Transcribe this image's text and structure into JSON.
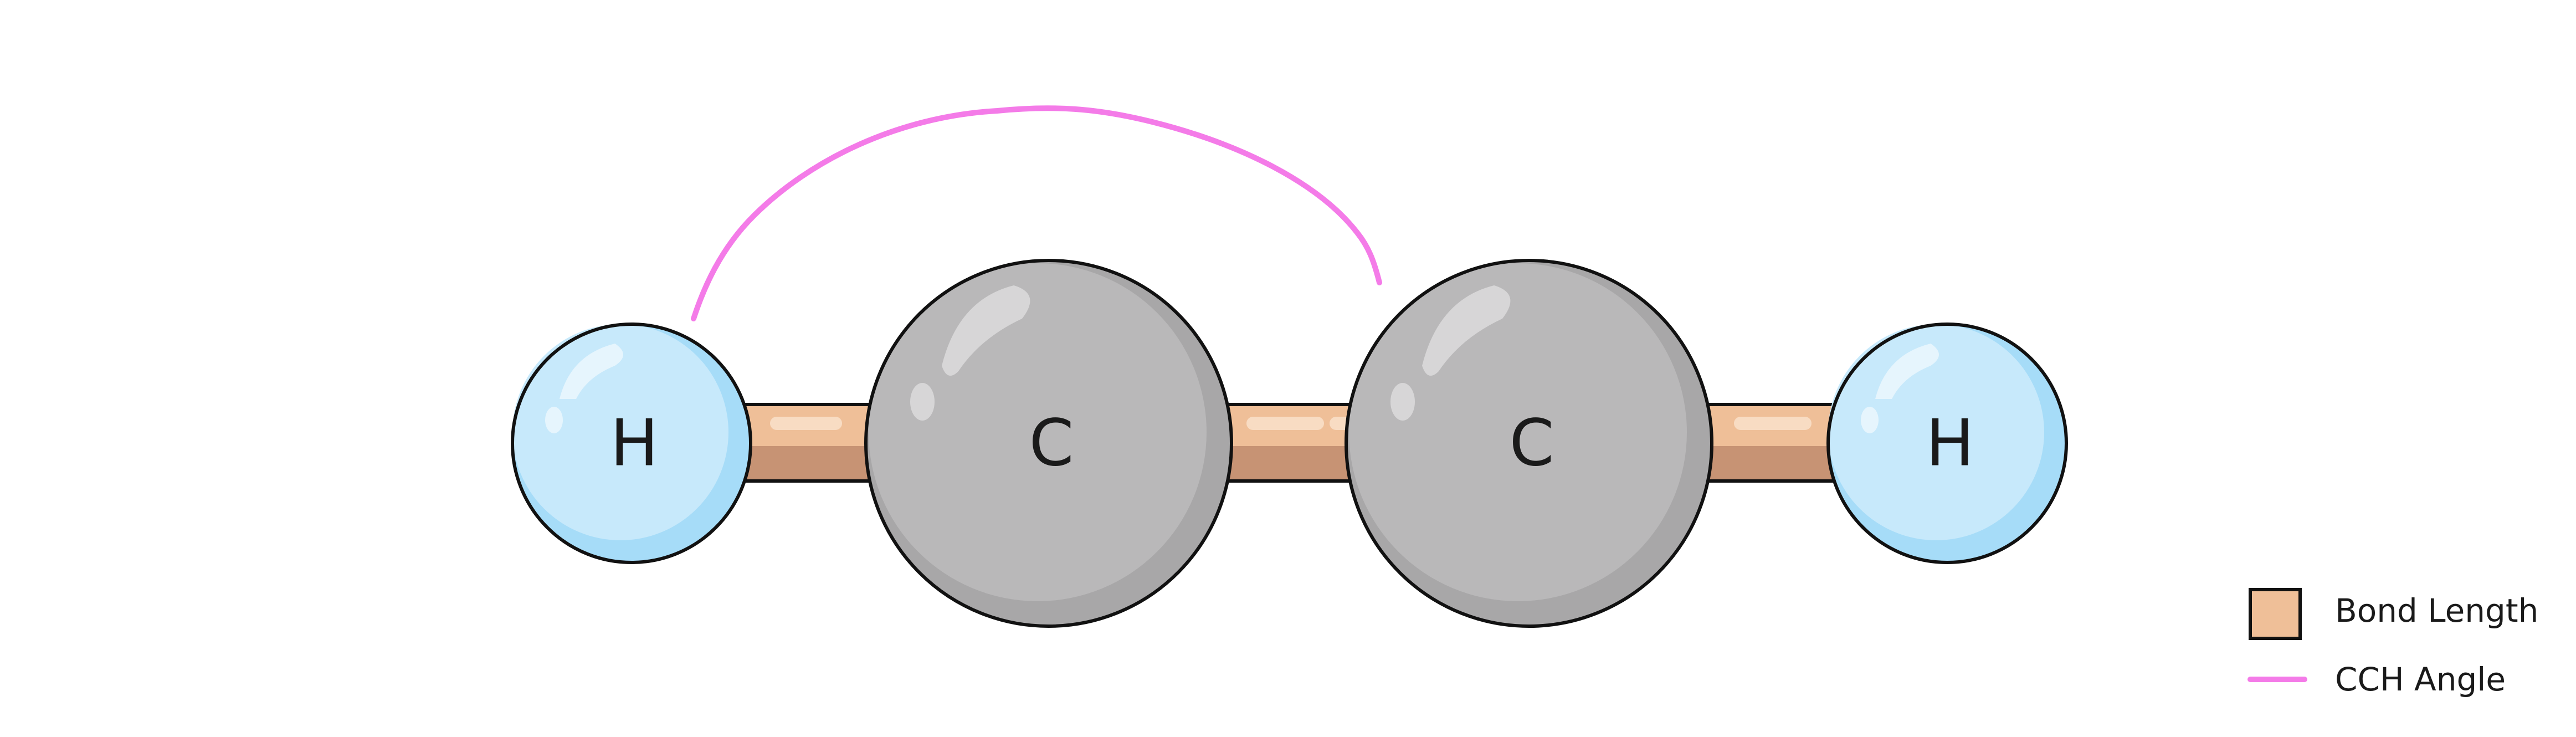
{
  "molecule": {
    "atoms": [
      {
        "id": "h-left",
        "label": "H"
      },
      {
        "id": "c-left",
        "label": "C"
      },
      {
        "id": "c-right",
        "label": "C"
      },
      {
        "id": "h-right",
        "label": "H"
      }
    ]
  },
  "legend": {
    "items": [
      {
        "label": "Bond Length",
        "swatch": "square",
        "color": "#efbf98"
      },
      {
        "label": "CCH Angle",
        "swatch": "line",
        "color": "#f47be8"
      }
    ]
  },
  "colors": {
    "hydrogen": "#c7e9fb",
    "hydrogen_shade": "#a6dcf8",
    "carbon": "#b9b8b9",
    "carbon_shade": "#a8a7a8",
    "bond_top": "#efbf98",
    "bond_bottom": "#c79374",
    "angle_arc": "#f47be8",
    "outline": "#111111"
  }
}
